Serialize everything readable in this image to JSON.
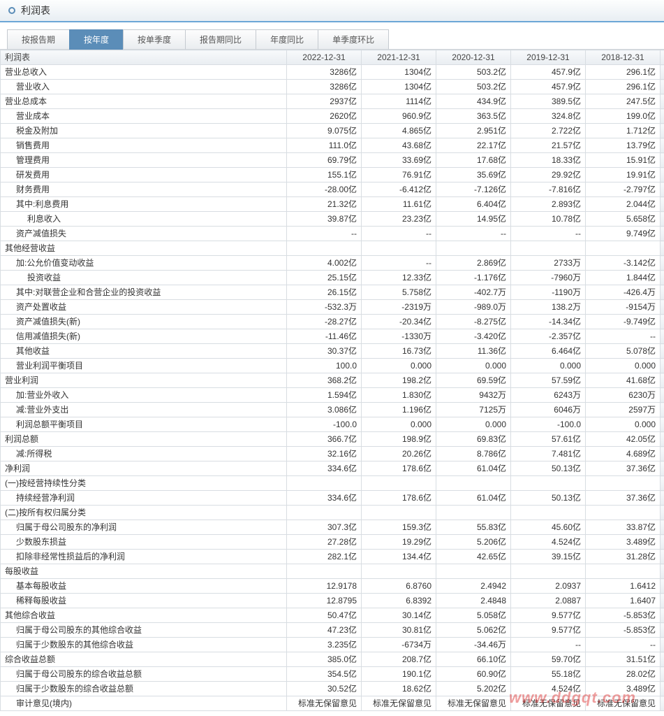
{
  "header": {
    "title": "利润表"
  },
  "tabs": [
    "按报告期",
    "按年度",
    "按单季度",
    "报告期同比",
    "年度同比",
    "单季度环比"
  ],
  "active_tab": 1,
  "columns": [
    "利润表",
    "2022-12-31",
    "2021-12-31",
    "2020-12-31",
    "2019-12-31",
    "2018-12-31"
  ],
  "col_widths": [
    "410px",
    "107px",
    "107px",
    "107px",
    "107px",
    "107px"
  ],
  "arrow": "»",
  "watermark": "www.ddgqt.com",
  "rows": [
    {
      "l": "营业总收入",
      "i": 0,
      "v": [
        "3286亿",
        "1304亿",
        "503.2亿",
        "457.9亿",
        "296.1亿"
      ]
    },
    {
      "l": "营业收入",
      "i": 1,
      "v": [
        "3286亿",
        "1304亿",
        "503.2亿",
        "457.9亿",
        "296.1亿"
      ]
    },
    {
      "l": "营业总成本",
      "i": 0,
      "v": [
        "2937亿",
        "1114亿",
        "434.9亿",
        "389.5亿",
        "247.5亿"
      ]
    },
    {
      "l": "营业成本",
      "i": 1,
      "v": [
        "2620亿",
        "960.9亿",
        "363.5亿",
        "324.8亿",
        "199.0亿"
      ]
    },
    {
      "l": "税金及附加",
      "i": 1,
      "v": [
        "9.075亿",
        "4.865亿",
        "2.951亿",
        "2.722亿",
        "1.712亿"
      ]
    },
    {
      "l": "销售费用",
      "i": 1,
      "v": [
        "111.0亿",
        "43.68亿",
        "22.17亿",
        "21.57亿",
        "13.79亿"
      ]
    },
    {
      "l": "管理费用",
      "i": 1,
      "v": [
        "69.79亿",
        "33.69亿",
        "17.68亿",
        "18.33亿",
        "15.91亿"
      ]
    },
    {
      "l": "研发费用",
      "i": 1,
      "v": [
        "155.1亿",
        "76.91亿",
        "35.69亿",
        "29.92亿",
        "19.91亿"
      ]
    },
    {
      "l": "财务费用",
      "i": 1,
      "v": [
        "-28.00亿",
        "-6.412亿",
        "-7.126亿",
        "-7.816亿",
        "-2.797亿"
      ]
    },
    {
      "l": "其中:利息费用",
      "i": 1,
      "v": [
        "21.32亿",
        "11.61亿",
        "6.404亿",
        "2.893亿",
        "2.044亿"
      ]
    },
    {
      "l": "利息收入",
      "i": 2,
      "v": [
        "39.87亿",
        "23.23亿",
        "14.95亿",
        "10.78亿",
        "5.658亿"
      ]
    },
    {
      "l": "资产减值损失",
      "i": 1,
      "v": [
        "--",
        "--",
        "--",
        "--",
        "9.749亿"
      ]
    },
    {
      "l": "其他经营收益",
      "i": 0,
      "v": [
        "",
        "",
        "",
        "",
        ""
      ]
    },
    {
      "l": "加:公允价值变动收益",
      "i": 1,
      "v": [
        "4.002亿",
        "--",
        "2.869亿",
        "2733万",
        "-3.142亿"
      ]
    },
    {
      "l": "投资收益",
      "i": 2,
      "v": [
        "25.15亿",
        "12.33亿",
        "-1.176亿",
        "-7960万",
        "1.844亿"
      ]
    },
    {
      "l": "其中:对联营企业和合营企业的投资收益",
      "i": 1,
      "v": [
        "26.15亿",
        "5.758亿",
        "-402.7万",
        "-1190万",
        "-426.4万"
      ]
    },
    {
      "l": "资产处置收益",
      "i": 1,
      "v": [
        "-532.3万",
        "-2319万",
        "-989.0万",
        "138.2万",
        "-9154万"
      ]
    },
    {
      "l": "资产减值损失(新)",
      "i": 1,
      "v": [
        "-28.27亿",
        "-20.34亿",
        "-8.275亿",
        "-14.34亿",
        "-9.749亿"
      ]
    },
    {
      "l": "信用减值损失(新)",
      "i": 1,
      "v": [
        "-11.46亿",
        "-1330万",
        "-3.420亿",
        "-2.357亿",
        "--"
      ]
    },
    {
      "l": "其他收益",
      "i": 1,
      "v": [
        "30.37亿",
        "16.73亿",
        "11.36亿",
        "6.464亿",
        "5.078亿"
      ]
    },
    {
      "l": "营业利润平衡项目",
      "i": 1,
      "v": [
        "100.0",
        "0.000",
        "0.000",
        "0.000",
        "0.000"
      ]
    },
    {
      "l": "营业利润",
      "i": 0,
      "v": [
        "368.2亿",
        "198.2亿",
        "69.59亿",
        "57.59亿",
        "41.68亿"
      ]
    },
    {
      "l": "加:营业外收入",
      "i": 1,
      "v": [
        "1.594亿",
        "1.830亿",
        "9432万",
        "6243万",
        "6230万"
      ]
    },
    {
      "l": "减:营业外支出",
      "i": 1,
      "v": [
        "3.086亿",
        "1.196亿",
        "7125万",
        "6046万",
        "2597万"
      ]
    },
    {
      "l": "利润总额平衡项目",
      "i": 1,
      "v": [
        "-100.0",
        "0.000",
        "0.000",
        "-100.0",
        "0.000"
      ]
    },
    {
      "l": "利润总额",
      "i": 0,
      "v": [
        "366.7亿",
        "198.9亿",
        "69.83亿",
        "57.61亿",
        "42.05亿"
      ]
    },
    {
      "l": "减:所得税",
      "i": 1,
      "v": [
        "32.16亿",
        "20.26亿",
        "8.786亿",
        "7.481亿",
        "4.689亿"
      ]
    },
    {
      "l": "净利润",
      "i": 0,
      "v": [
        "334.6亿",
        "178.6亿",
        "61.04亿",
        "50.13亿",
        "37.36亿"
      ]
    },
    {
      "l": "(一)按经营持续性分类",
      "i": 0,
      "v": [
        "",
        "",
        "",
        "",
        ""
      ]
    },
    {
      "l": "持续经营净利润",
      "i": 1,
      "v": [
        "334.6亿",
        "178.6亿",
        "61.04亿",
        "50.13亿",
        "37.36亿"
      ]
    },
    {
      "l": "(二)按所有权归属分类",
      "i": 0,
      "v": [
        "",
        "",
        "",
        "",
        ""
      ]
    },
    {
      "l": "归属于母公司股东的净利润",
      "i": 1,
      "v": [
        "307.3亿",
        "159.3亿",
        "55.83亿",
        "45.60亿",
        "33.87亿"
      ]
    },
    {
      "l": "少数股东损益",
      "i": 1,
      "v": [
        "27.28亿",
        "19.29亿",
        "5.206亿",
        "4.524亿",
        "3.489亿"
      ]
    },
    {
      "l": "扣除非经常性损益后的净利润",
      "i": 1,
      "v": [
        "282.1亿",
        "134.4亿",
        "42.65亿",
        "39.15亿",
        "31.28亿"
      ]
    },
    {
      "l": "每股收益",
      "i": 0,
      "v": [
        "",
        "",
        "",
        "",
        ""
      ]
    },
    {
      "l": "基本每股收益",
      "i": 1,
      "v": [
        "12.9178",
        "6.8760",
        "2.4942",
        "2.0937",
        "1.6412"
      ]
    },
    {
      "l": "稀释每股收益",
      "i": 1,
      "v": [
        "12.8795",
        "6.8392",
        "2.4848",
        "2.0887",
        "1.6407"
      ]
    },
    {
      "l": "其他综合收益",
      "i": 0,
      "v": [
        "50.47亿",
        "30.14亿",
        "5.058亿",
        "9.577亿",
        "-5.853亿"
      ]
    },
    {
      "l": "归属于母公司股东的其他综合收益",
      "i": 1,
      "v": [
        "47.23亿",
        "30.81亿",
        "5.062亿",
        "9.577亿",
        "-5.853亿"
      ]
    },
    {
      "l": "归属于少数股东的其他综合收益",
      "i": 1,
      "v": [
        "3.235亿",
        "-6734万",
        "-34.46万",
        "--",
        "--"
      ]
    },
    {
      "l": "综合收益总额",
      "i": 0,
      "v": [
        "385.0亿",
        "208.7亿",
        "66.10亿",
        "59.70亿",
        "31.51亿"
      ]
    },
    {
      "l": "归属于母公司股东的综合收益总额",
      "i": 1,
      "v": [
        "354.5亿",
        "190.1亿",
        "60.90亿",
        "55.18亿",
        "28.02亿"
      ]
    },
    {
      "l": "归属于少数股东的综合收益总额",
      "i": 1,
      "v": [
        "30.52亿",
        "18.62亿",
        "5.202亿",
        "4.524亿",
        "3.489亿"
      ]
    },
    {
      "l": "审计意见(境内)",
      "i": 1,
      "v": [
        "标准无保留意见",
        "标准无保留意见",
        "标准无保留意见",
        "标准无保留意见",
        "标准无保留意见"
      ]
    }
  ]
}
